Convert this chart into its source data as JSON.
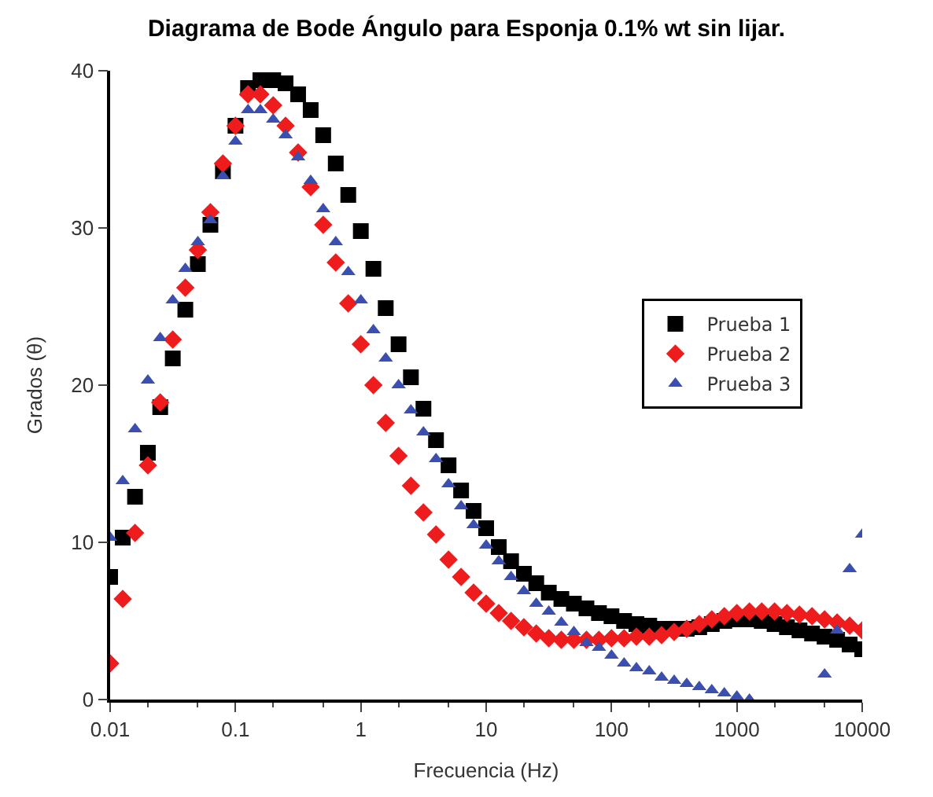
{
  "chart_data": {
    "type": "scatter",
    "title": "Diagrama de Bode Ángulo para Esponja 0.1% wt sin lijar.",
    "xlabel": "Frecuencia (Hz)",
    "ylabel": "Grados (θ)",
    "log": "x",
    "xlim": [
      0.01,
      10000
    ],
    "xticks": [
      0.01,
      0.1,
      1,
      10,
      100,
      1000,
      10000
    ],
    "ylim": [
      0,
      40
    ],
    "yticks": [
      0,
      10,
      20,
      30,
      40
    ],
    "legend": "right",
    "x": [
      0.01,
      0.0126,
      0.0158,
      0.02,
      0.0251,
      0.0316,
      0.0398,
      0.0501,
      0.0631,
      0.0794,
      0.1,
      0.126,
      0.158,
      0.2,
      0.251,
      0.316,
      0.398,
      0.501,
      0.631,
      0.794,
      1,
      1.26,
      1.58,
      2,
      2.51,
      3.16,
      3.98,
      5.01,
      6.31,
      7.94,
      10,
      12.6,
      15.8,
      20,
      25.1,
      31.6,
      39.8,
      50.1,
      63.1,
      79.4,
      100,
      126,
      158,
      200,
      251,
      316,
      398,
      501,
      631,
      794,
      1000,
      1260,
      1580,
      2000,
      2510,
      3160,
      3980,
      5010,
      6310,
      7940,
      10000
    ],
    "series": [
      {
        "name": "Prueba 1",
        "color": "#000000",
        "marker": "square",
        "values": [
          7.8,
          10.3,
          12.9,
          15.7,
          18.6,
          21.7,
          24.8,
          27.7,
          30.2,
          33.6,
          36.5,
          38.9,
          39.4,
          39.4,
          39.2,
          38.5,
          37.5,
          35.9,
          34.1,
          32.1,
          29.8,
          27.4,
          24.9,
          22.6,
          20.5,
          18.5,
          16.5,
          14.9,
          13.3,
          12.0,
          10.9,
          9.7,
          8.8,
          8.0,
          7.4,
          6.8,
          6.4,
          6.1,
          5.8,
          5.5,
          5.3,
          5.0,
          4.8,
          4.7,
          4.5,
          4.5,
          4.5,
          4.6,
          4.8,
          5.0,
          5.1,
          5.1,
          5.0,
          4.8,
          4.6,
          4.4,
          4.2,
          4.0,
          3.8,
          3.5,
          3.2
        ]
      },
      {
        "name": "Prueba 2",
        "color": "#ee1c1c",
        "marker": "diamond",
        "values": [
          2.3,
          6.4,
          10.6,
          14.9,
          18.9,
          22.9,
          26.2,
          28.6,
          31.0,
          34.1,
          36.5,
          38.5,
          38.5,
          37.8,
          36.5,
          34.8,
          32.6,
          30.2,
          27.8,
          25.2,
          22.6,
          20.0,
          17.6,
          15.5,
          13.6,
          11.9,
          10.5,
          8.9,
          7.8,
          6.8,
          6.1,
          5.5,
          5.0,
          4.6,
          4.2,
          3.9,
          3.8,
          3.8,
          3.8,
          3.8,
          3.9,
          3.9,
          4.0,
          4.0,
          4.1,
          4.3,
          4.5,
          4.8,
          5.1,
          5.3,
          5.5,
          5.6,
          5.6,
          5.6,
          5.5,
          5.4,
          5.3,
          5.1,
          4.9,
          4.7,
          4.4
        ]
      },
      {
        "name": "Prueba 3",
        "color": "#3a4fb0",
        "marker": "triangle",
        "values": [
          10.3,
          13.9,
          17.2,
          20.3,
          23.0,
          25.4,
          27.4,
          29.1,
          30.5,
          33.3,
          35.5,
          37.5,
          37.5,
          36.9,
          35.9,
          34.5,
          33.0,
          31.2,
          29.1,
          27.2,
          25.4,
          23.5,
          21.7,
          20.0,
          18.4,
          17.0,
          15.3,
          13.7,
          12.3,
          11.1,
          9.8,
          8.8,
          7.8,
          6.9,
          6.1,
          5.6,
          4.9,
          4.3,
          3.6,
          3.3,
          2.8,
          2.3,
          2.0,
          1.8,
          1.4,
          1.2,
          1.0,
          0.8,
          0.6,
          0.4,
          0.2,
          0.0,
          null,
          null,
          null,
          null,
          null,
          1.6,
          4.4,
          8.3,
          10.5
        ]
      }
    ]
  }
}
